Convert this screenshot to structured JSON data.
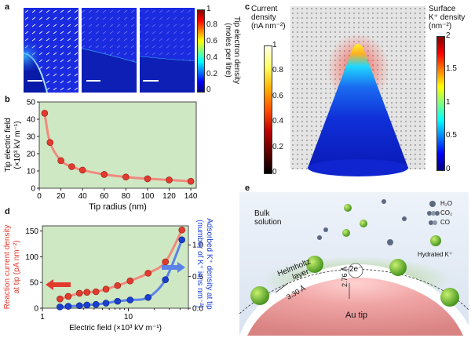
{
  "panel_labels": {
    "a": "a",
    "b": "b",
    "c": "c",
    "d": "d",
    "e": "e"
  },
  "colors": {
    "green_bg": "#cfe8c4",
    "red": "#e23b2e",
    "red_line": "#f08a7e",
    "blue": "#1a3fd0",
    "blue_line": "#5a82e8",
    "jet_dark": "#000080"
  },
  "panel_a": {
    "colorbar_ticks": [
      "1",
      "0.8",
      "0.6",
      "0.4",
      "0.2",
      "0"
    ],
    "colorbar_label_1": "Tip electron density",
    "colorbar_label_2": "(moles per litre)"
  },
  "panel_c": {
    "left_bar_title_1": "Current",
    "left_bar_title_2": "density",
    "left_bar_title_3": "(nA nm⁻²)",
    "left_ticks": [
      "1",
      "0.8",
      "0.6",
      "0.4",
      "0.2",
      "0"
    ],
    "right_bar_title_1": "Surface",
    "right_bar_title_2": "K⁺ density",
    "right_bar_title_3": "(nm⁻²)",
    "right_ticks": [
      "2",
      "1.5",
      "1",
      "0.5",
      "0"
    ]
  },
  "panel_e": {
    "bulk_1": "Bulk",
    "bulk_2": "solution",
    "helmholtz_1": "Helmholtz",
    "helmholtz_2": "layer",
    "dist_1": "3.30 Å",
    "dist_2": "2.76 Å",
    "electrons": "2e⁻",
    "tip": "Au tip",
    "legend_h2o": "H₂O",
    "legend_co2": "CO₂",
    "legend_co": "CO",
    "legend_k": "Hydrated K⁺"
  },
  "chart_data": [
    {
      "type": "scatter",
      "panel": "b",
      "xlabel": "Tip radius (nm)",
      "ylabel_1": "Tip electric field",
      "ylabel_2": "(×10³ kV m⁻¹)",
      "xlim": [
        0,
        145
      ],
      "ylim": [
        0,
        50
      ],
      "xticks": [
        0,
        20,
        40,
        60,
        80,
        100,
        120,
        140
      ],
      "yticks": [
        0,
        10,
        20,
        30,
        40,
        50
      ],
      "x": [
        5,
        10,
        20,
        30,
        40,
        60,
        80,
        100,
        120,
        140
      ],
      "y": [
        43.5,
        26.5,
        16,
        12.5,
        10.5,
        8,
        6.5,
        5.5,
        4.8,
        4
      ]
    },
    {
      "type": "scatter",
      "panel": "d",
      "xlabel": "Electric field (×10³ kV m⁻¹)",
      "ylabel_left_1": "Reaction current density",
      "ylabel_left_2": "at tip (pA nm⁻²)",
      "ylabel_right_1": "Adsorbed K⁺ density at tip",
      "ylabel_right_2": "(number of K⁺ ions nm⁻²)",
      "x_scale": "log",
      "xlim": [
        1,
        50
      ],
      "xticks": [
        1,
        10
      ],
      "ylim_left": [
        0,
        160
      ],
      "yticks_left": [
        0,
        50,
        100,
        150
      ],
      "ylim_right": [
        0,
        1.3
      ],
      "yticks_right": [
        0,
        0.5,
        1.0
      ],
      "series": [
        {
          "name": "Reaction current density",
          "axis": "left",
          "x": [
            1.6,
            2.0,
            2.7,
            3.3,
            4.2,
            5.5,
            7.5,
            10.5,
            17,
            27,
            42
          ],
          "y": [
            18,
            23,
            29,
            31,
            32,
            37,
            44,
            53,
            68,
            90,
            152
          ]
        },
        {
          "name": "Adsorbed K⁺ density",
          "axis": "right",
          "x": [
            1.6,
            2.0,
            2.7,
            3.3,
            4.2,
            5.5,
            7.5,
            10.5,
            17,
            27,
            42
          ],
          "y": [
            0.02,
            0.03,
            0.04,
            0.05,
            0.06,
            0.08,
            0.11,
            0.13,
            0.17,
            0.45,
            1.08
          ]
        }
      ]
    }
  ]
}
